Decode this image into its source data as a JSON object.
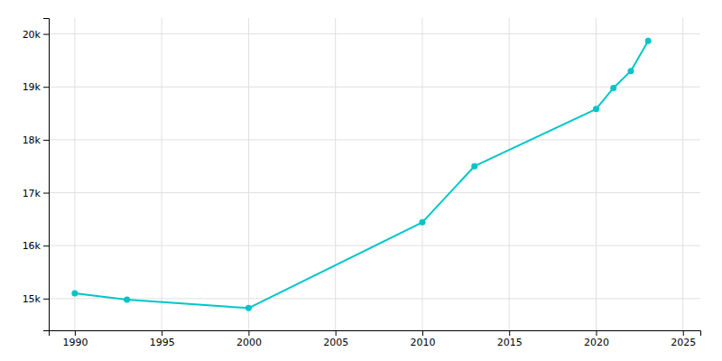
{
  "chart_data": {
    "type": "line",
    "x": [
      1990,
      1993,
      2000,
      2010,
      2013,
      2020,
      2021,
      2022,
      2023
    ],
    "values": [
      15100,
      14980,
      14820,
      16440,
      17500,
      18580,
      18980,
      19300,
      19870
    ],
    "color": "#00c5c8",
    "marker": "circle",
    "xlim": [
      1988.5,
      2026
    ],
    "ylim": [
      14400,
      20300
    ],
    "xticks": [
      1990,
      1995,
      2000,
      2005,
      2010,
      2015,
      2020,
      2025
    ],
    "yticks": [
      {
        "value": 15000,
        "label": "15k"
      },
      {
        "value": 16000,
        "label": "16k"
      },
      {
        "value": 17000,
        "label": "17k"
      },
      {
        "value": 18000,
        "label": "18k"
      },
      {
        "value": 19000,
        "label": "19k"
      },
      {
        "value": 20000,
        "label": "20k"
      }
    ],
    "grid": true
  }
}
